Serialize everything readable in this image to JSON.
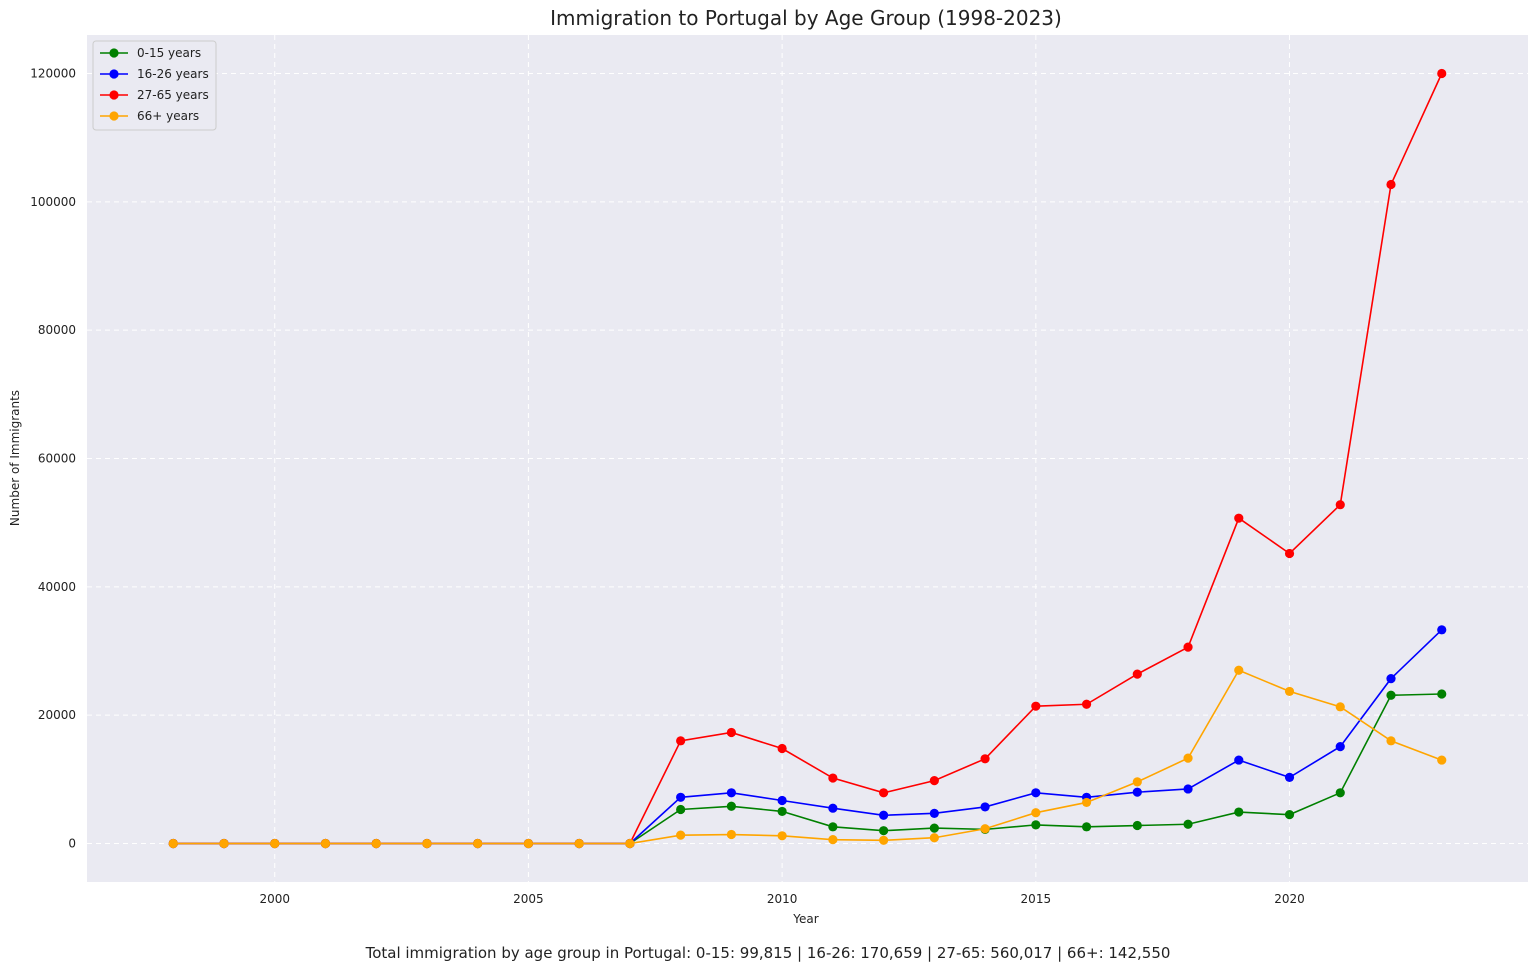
{
  "chart_data": {
    "type": "line",
    "title": "Immigration to Portugal by Age Group (1998-2023)",
    "xlabel": "Year",
    "ylabel": "Number of Immigrants",
    "footer": "Total immigration by age group in Portugal: 0-15: 99,815 | 16-26: 170,659 | 27-65: 560,017 | 66+: 142,550",
    "x": [
      1998,
      1999,
      2000,
      2001,
      2002,
      2003,
      2004,
      2005,
      2006,
      2007,
      2008,
      2009,
      2010,
      2011,
      2012,
      2013,
      2014,
      2015,
      2016,
      2017,
      2018,
      2019,
      2020,
      2021,
      2022,
      2023
    ],
    "xlim": [
      1996.3,
      2024.7
    ],
    "ylim": [
      -6000,
      126000
    ],
    "x_ticks": [
      "2000",
      "2005",
      "2010",
      "2015",
      "2020"
    ],
    "y_ticks": [
      "0",
      "20000",
      "40000",
      "60000",
      "80000",
      "100000",
      "120000"
    ],
    "grid": true,
    "legend_position": "top-left",
    "background": "#eaeaf2",
    "series": [
      {
        "name": "0-15 years",
        "color": "#008000",
        "values": [
          0,
          0,
          0,
          0,
          0,
          0,
          0,
          0,
          0,
          0,
          5300,
          5800,
          5000,
          2600,
          2000,
          2400,
          2200,
          2900,
          2600,
          2800,
          3000,
          4900,
          4500,
          7900,
          23100,
          23300
        ]
      },
      {
        "name": "16-26 years",
        "color": "#0000ff",
        "values": [
          0,
          0,
          0,
          0,
          0,
          0,
          0,
          0,
          0,
          0,
          7200,
          7900,
          6700,
          5500,
          4400,
          4700,
          5700,
          7900,
          7200,
          8000,
          8500,
          13000,
          10300,
          15100,
          25700,
          33300
        ]
      },
      {
        "name": "27-65 years",
        "color": "#ff0000",
        "values": [
          0,
          0,
          0,
          0,
          0,
          0,
          0,
          0,
          0,
          0,
          16000,
          17300,
          14800,
          10200,
          7900,
          9800,
          13200,
          21400,
          21700,
          26400,
          30600,
          50700,
          45200,
          52800,
          102700,
          120000
        ]
      },
      {
        "name": "66+ years",
        "color": "#ffa500",
        "values": [
          0,
          0,
          0,
          0,
          0,
          0,
          0,
          0,
          0,
          0,
          1300,
          1400,
          1200,
          600,
          500,
          900,
          2300,
          4800,
          6400,
          9600,
          13300,
          27000,
          23700,
          21300,
          16000,
          13000
        ]
      }
    ]
  }
}
